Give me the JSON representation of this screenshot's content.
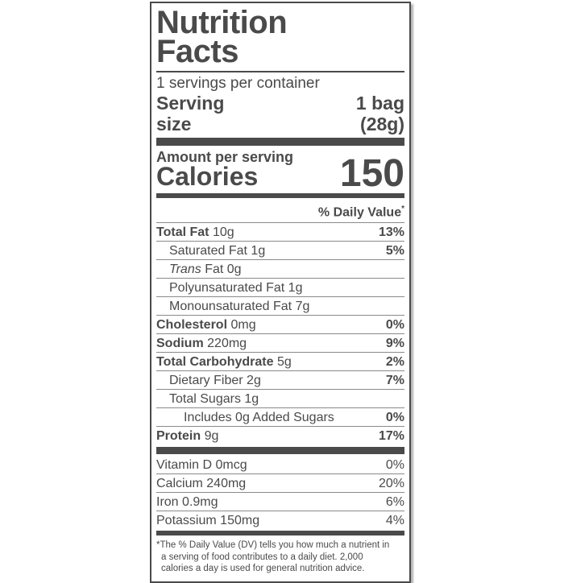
{
  "colors": {
    "ink": "#4a4a4b",
    "hairline": "#8a8a8a",
    "background": "#ffffff"
  },
  "label": {
    "title": {
      "line1": "Nutrition",
      "line2": "Facts"
    },
    "servings_per_container": "1 servings per container",
    "serving_size": {
      "label_line1": "Serving",
      "label_line2": "size",
      "value_line1": "1 bag",
      "value_line2": "(28g)"
    },
    "calories": {
      "amount_per_serving_label": "Amount per serving",
      "label": "Calories",
      "value": "150"
    },
    "daily_value_header": {
      "text": "% Daily Value",
      "asterisk": "*"
    },
    "nutrients": [
      {
        "name": "Total Fat",
        "amount": "10g",
        "dv": "13%"
      },
      {
        "name": "Saturated Fat",
        "amount": "1g",
        "dv": "5%"
      },
      {
        "name_italic": "Trans",
        "name": "Fat",
        "amount": "0g",
        "dv": ""
      },
      {
        "name": "Polyunsaturated Fat",
        "amount": "1g",
        "dv": ""
      },
      {
        "name": "Monounsaturated Fat",
        "amount": "7g",
        "dv": ""
      },
      {
        "name": "Cholesterol",
        "amount": "0mg",
        "dv": "0%"
      },
      {
        "name": "Sodium",
        "amount": "220mg",
        "dv": "9%"
      },
      {
        "name": "Total Carbohydrate",
        "amount": "5g",
        "dv": "2%"
      },
      {
        "name": "Dietary Fiber",
        "amount": "2g",
        "dv": "7%"
      },
      {
        "name": "Total Sugars",
        "amount": "1g",
        "dv": ""
      },
      {
        "name": "Includes 0g Added Sugars",
        "amount": "",
        "dv": "0%"
      },
      {
        "name": "Protein",
        "amount": "9g",
        "dv": "17%"
      }
    ],
    "micronutrients": [
      {
        "name": "Vitamin D",
        "amount": "0mcg",
        "dv": "0%"
      },
      {
        "name": "Calcium",
        "amount": "240mg",
        "dv": "20%"
      },
      {
        "name": "Iron",
        "amount": "0.9mg",
        "dv": "6%"
      },
      {
        "name": "Potassium",
        "amount": "150mg",
        "dv": "4%"
      }
    ],
    "footnote": {
      "line1": "*The % Daily Value (DV) tells you how much a nutrient in",
      "line2": "a serving of food contributes to a daily diet. 2,000",
      "line3": "calories a day is used for general nutrition advice."
    }
  }
}
